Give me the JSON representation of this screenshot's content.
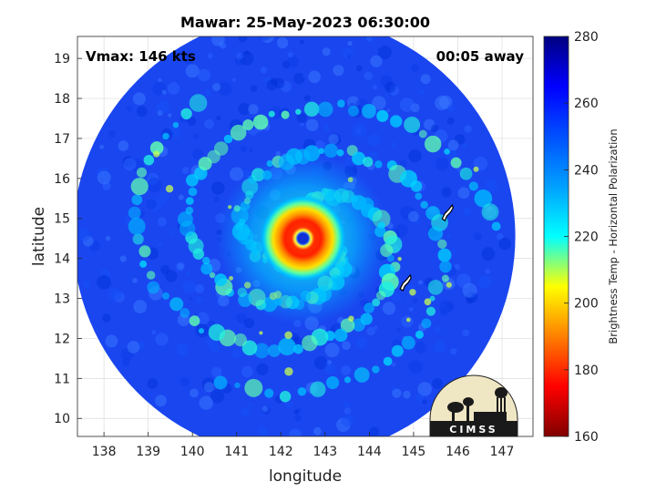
{
  "chart_data": {
    "type": "heatmap",
    "title": "Mawar: 25-May-2023 06:30:00",
    "xlabel": "longitude",
    "ylabel": "latitude",
    "xlim": [
      137.4,
      147.7
    ],
    "ylim": [
      9.55,
      19.55
    ],
    "xticks": [
      138,
      139,
      140,
      141,
      142,
      143,
      144,
      145,
      146,
      147
    ],
    "yticks": [
      10,
      11,
      12,
      13,
      14,
      15,
      16,
      17,
      18,
      19
    ],
    "grid": true,
    "annotations": {
      "vmax": "Vmax: 146 kts",
      "time_offset": "00:05 away"
    },
    "storm_center": {
      "lon": 142.5,
      "lat": 14.5
    },
    "swath_edge": {
      "lon": 142.3,
      "lat": 14.55,
      "radius_deg": 5.0
    },
    "colorbar": {
      "label": "Brightness Temp - Horizontal Polarization",
      "min": 160,
      "max": 280,
      "ticks": [
        160,
        180,
        200,
        220,
        240,
        260,
        280
      ],
      "colormap": "jet"
    },
    "islands": [
      {
        "name": "Guam",
        "lon": 144.8,
        "lat": 13.4
      },
      {
        "name": "Saipan",
        "lon": 145.75,
        "lat": 15.15
      }
    ]
  },
  "logo": {
    "text": "CIMSS"
  }
}
